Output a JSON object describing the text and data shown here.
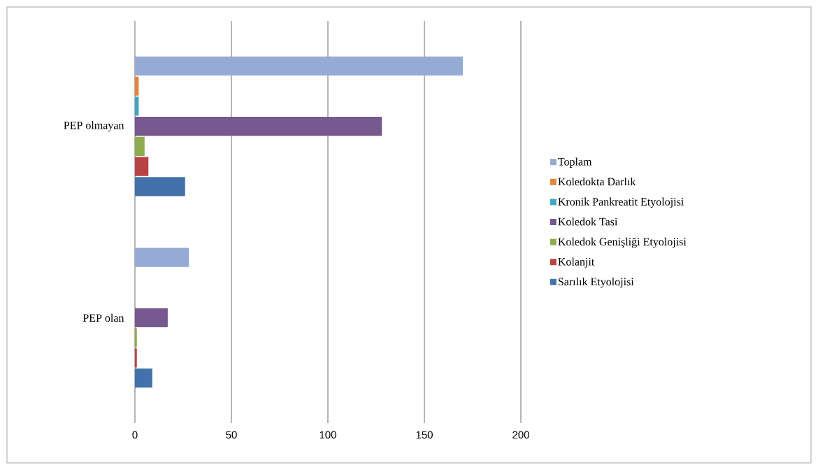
{
  "chart_data": {
    "type": "bar",
    "orientation": "horizontal",
    "categories": [
      "PEP olmayan",
      "PEP olan"
    ],
    "series": [
      {
        "name": "Toplam",
        "color": "#95abd4",
        "values": [
          170,
          28
        ]
      },
      {
        "name": "Koledokta Darlık",
        "color": "#e6843c",
        "values": [
          2,
          0
        ]
      },
      {
        "name": "Kronik Pankreatit Etyolojisi",
        "color": "#3fa5c0",
        "values": [
          2,
          0
        ]
      },
      {
        "name": "Koledok Tasi",
        "color": "#76598f",
        "values": [
          128,
          17
        ]
      },
      {
        "name": "Koledok Genişliği Etyolojisi",
        "color": "#8fab4f",
        "values": [
          5,
          1
        ]
      },
      {
        "name": "Kolanjit",
        "color": "#b84343",
        "values": [
          7,
          1
        ]
      },
      {
        "name": "Sarılık Etyolojisi",
        "color": "#4372aa",
        "values": [
          26,
          9
        ]
      }
    ],
    "xlim": [
      0,
      200
    ],
    "xticks": [
      0,
      50,
      100,
      150,
      200
    ],
    "grid": "x",
    "legend": "right"
  }
}
